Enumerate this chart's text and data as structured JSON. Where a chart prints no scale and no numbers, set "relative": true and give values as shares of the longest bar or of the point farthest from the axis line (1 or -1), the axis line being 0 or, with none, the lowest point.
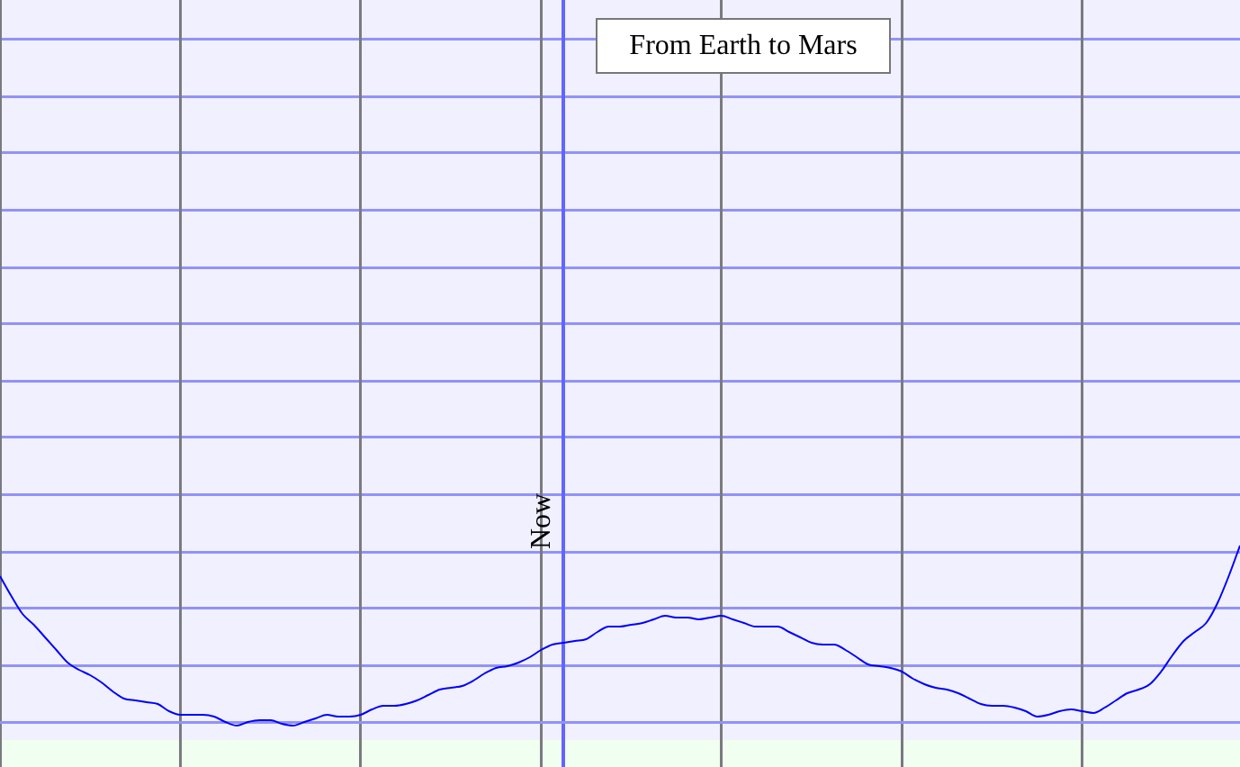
{
  "chart_data": {
    "type": "line",
    "title": "From Earth to Mars",
    "categories": [
      null,
      null,
      null,
      null,
      null,
      null,
      null,
      null,
      null,
      null,
      null,
      null,
      null,
      null,
      null,
      null,
      null,
      null,
      null,
      null,
      null,
      null,
      null,
      null,
      null,
      null,
      null,
      null,
      null,
      null,
      null,
      null,
      null,
      null,
      null,
      null,
      null,
      null,
      null,
      null,
      null,
      null,
      null,
      null,
      null,
      null,
      null,
      null,
      null,
      null,
      null,
      null,
      null,
      null,
      null,
      null,
      null,
      null,
      null,
      null,
      null,
      null,
      null,
      null,
      null,
      null,
      null,
      null,
      null,
      null,
      null,
      null,
      null,
      null,
      null,
      null,
      null,
      null,
      null,
      null,
      null,
      null,
      null,
      null,
      null,
      null,
      null,
      null,
      null,
      null,
      null,
      null,
      null,
      null,
      null,
      null,
      null,
      null,
      null,
      null,
      null,
      null,
      null,
      null,
      null,
      null,
      null,
      null,
      null,
      null,
      null
    ],
    "values": [
      0.83,
      0.72,
      0.62,
      0.56,
      0.49,
      0.42,
      0.35,
      0.31,
      0.28,
      0.24,
      0.19,
      0.15,
      0.14,
      0.13,
      0.12,
      0.08,
      0.06,
      0.06,
      0.06,
      0.05,
      0.02,
      0,
      0.02,
      0.03,
      0.03,
      0.01,
      0,
      0.02,
      0.04,
      0.06,
      0.05,
      0.05,
      0.06,
      0.09,
      0.11,
      0.11,
      0.12,
      0.14,
      0.17,
      0.2,
      0.21,
      0.22,
      0.25,
      0.29,
      0.32,
      0.33,
      0.35,
      0.38,
      0.42,
      0.45,
      0.46,
      0.47,
      0.48,
      0.52,
      0.55,
      0.55,
      0.56,
      0.57,
      0.59,
      0.61,
      0.6,
      0.6,
      0.59,
      0.6,
      0.61,
      0.59,
      0.57,
      0.55,
      0.55,
      0.55,
      0.52,
      0.49,
      0.46,
      0.45,
      0.45,
      0.42,
      0.38,
      0.34,
      0.33,
      0.32,
      0.3,
      0.26,
      0.23,
      0.21,
      0.2,
      0.18,
      0.15,
      0.12,
      0.11,
      0.11,
      0.1,
      0.08,
      0.05,
      0.06,
      0.08,
      0.09,
      0.08,
      0.07,
      0.1,
      0.14,
      0.18,
      0.2,
      0.23,
      0.3,
      0.39,
      0.47,
      0.52,
      0.57,
      0.68,
      0.83,
      1
    ],
    "color": "#0000ff",
    "relative": true,
    "grid": true,
    "tick_labels": false,
    "marker": "none",
    "annotations": [
      "Now"
    ]
  }
}
